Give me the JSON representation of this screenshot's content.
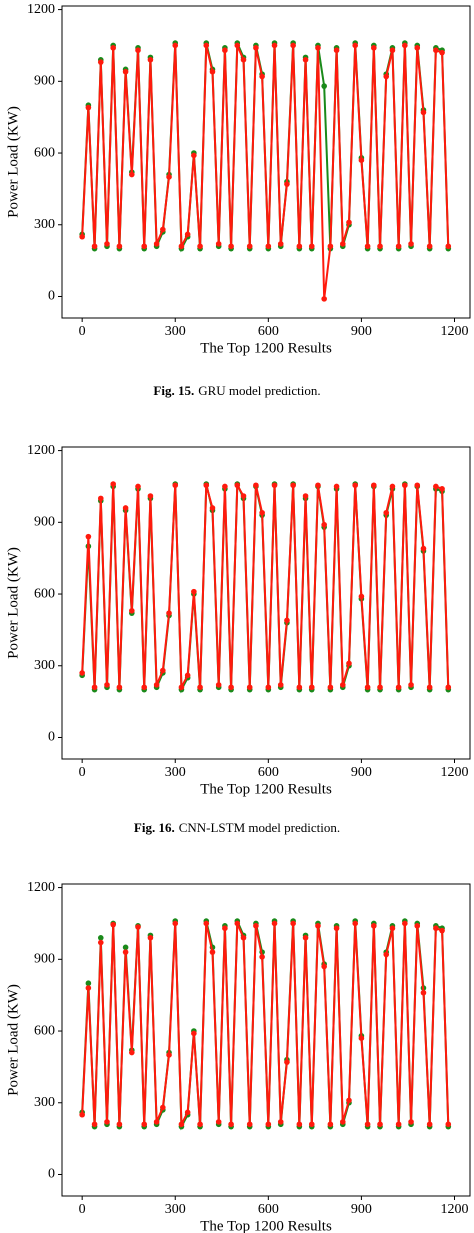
{
  "chart_data": [
    {
      "type": "line",
      "xlabel": "The Top 1200 Results",
      "ylabel": "Power Load (KW)",
      "caption_label": "Fig. 15.",
      "caption_text": "GRU model prediction.",
      "xlim": [
        -65,
        1250
      ],
      "ylim": [
        -90,
        1215
      ],
      "xticks": [
        0,
        300,
        600,
        900,
        1200
      ],
      "yticks": [
        0,
        300,
        600,
        900,
        1200
      ],
      "x": [
        0,
        20,
        40,
        60,
        80,
        100,
        120,
        140,
        160,
        180,
        200,
        220,
        240,
        260,
        280,
        300,
        320,
        340,
        360,
        380,
        400,
        420,
        440,
        460,
        480,
        500,
        520,
        540,
        560,
        580,
        600,
        620,
        640,
        660,
        680,
        700,
        720,
        740,
        760,
        780,
        800,
        820,
        840,
        860,
        880,
        900,
        920,
        940,
        960,
        980,
        1000,
        1020,
        1040,
        1060,
        1080,
        1100,
        1120,
        1140,
        1160,
        1180
      ],
      "series": [
        {
          "color": "#1a8a1a",
          "values": [
            260,
            800,
            200,
            990,
            210,
            1050,
            200,
            950,
            520,
            1040,
            200,
            1000,
            210,
            270,
            510,
            1060,
            200,
            250,
            600,
            200,
            1060,
            950,
            210,
            1040,
            200,
            1060,
            1000,
            200,
            1050,
            930,
            200,
            1060,
            210,
            480,
            1060,
            200,
            1000,
            200,
            1050,
            880,
            200,
            1040,
            210,
            300,
            1060,
            580,
            200,
            1050,
            200,
            930,
            1040,
            200,
            1060,
            210,
            1050,
            780,
            200,
            1040,
            1030,
            200
          ]
        },
        {
          "color": "#ff1a0d",
          "values": [
            250,
            790,
            210,
            980,
            220,
            1040,
            210,
            940,
            510,
            1030,
            210,
            990,
            220,
            280,
            500,
            1050,
            210,
            260,
            590,
            210,
            1050,
            940,
            220,
            1030,
            210,
            1050,
            990,
            210,
            1040,
            920,
            210,
            1050,
            220,
            470,
            1050,
            210,
            990,
            210,
            1040,
            -10,
            210,
            1030,
            220,
            310,
            1050,
            570,
            210,
            1040,
            210,
            920,
            1030,
            210,
            1050,
            220,
            1040,
            770,
            210,
            1030,
            1020,
            210
          ]
        }
      ]
    },
    {
      "type": "line",
      "xlabel": "The Top 1200 Results",
      "ylabel": "Power Load (KW)",
      "caption_label": "Fig. 16.",
      "caption_text": "CNN-LSTM model prediction.",
      "xlim": [
        -65,
        1250
      ],
      "ylim": [
        -90,
        1215
      ],
      "xticks": [
        0,
        300,
        600,
        900,
        1200
      ],
      "yticks": [
        0,
        300,
        600,
        900,
        1200
      ],
      "x": [
        0,
        20,
        40,
        60,
        80,
        100,
        120,
        140,
        160,
        180,
        200,
        220,
        240,
        260,
        280,
        300,
        320,
        340,
        360,
        380,
        400,
        420,
        440,
        460,
        480,
        500,
        520,
        540,
        560,
        580,
        600,
        620,
        640,
        660,
        680,
        700,
        720,
        740,
        760,
        780,
        800,
        820,
        840,
        860,
        880,
        900,
        920,
        940,
        960,
        980,
        1000,
        1020,
        1040,
        1060,
        1080,
        1100,
        1120,
        1140,
        1160,
        1180
      ],
      "series": [
        {
          "color": "#1a8a1a",
          "values": [
            260,
            800,
            200,
            990,
            210,
            1050,
            200,
            950,
            520,
            1040,
            200,
            1000,
            210,
            270,
            510,
            1060,
            200,
            250,
            600,
            200,
            1060,
            950,
            210,
            1040,
            200,
            1060,
            1000,
            200,
            1050,
            930,
            200,
            1060,
            210,
            480,
            1060,
            200,
            1000,
            200,
            1050,
            880,
            200,
            1040,
            210,
            300,
            1060,
            580,
            200,
            1050,
            200,
            930,
            1040,
            200,
            1060,
            210,
            1050,
            780,
            200,
            1040,
            1030,
            200
          ]
        },
        {
          "color": "#ff1a0d",
          "values": [
            270,
            840,
            210,
            1000,
            220,
            1060,
            210,
            960,
            530,
            1050,
            210,
            1010,
            220,
            280,
            520,
            1055,
            210,
            260,
            610,
            210,
            1055,
            960,
            220,
            1050,
            210,
            1055,
            1010,
            210,
            1055,
            940,
            210,
            1055,
            220,
            490,
            1055,
            210,
            1010,
            210,
            1055,
            890,
            210,
            1050,
            220,
            310,
            1055,
            590,
            210,
            1055,
            210,
            940,
            1050,
            210,
            1055,
            220,
            1055,
            790,
            210,
            1050,
            1040,
            210
          ]
        }
      ]
    },
    {
      "type": "line",
      "xlabel": "The Top 1200 Results",
      "ylabel": "Power Load (KW)",
      "xlim": [
        -65,
        1250
      ],
      "ylim": [
        -90,
        1215
      ],
      "xticks": [
        0,
        300,
        600,
        900,
        1200
      ],
      "yticks": [
        0,
        300,
        600,
        900,
        1200
      ],
      "x": [
        0,
        20,
        40,
        60,
        80,
        100,
        120,
        140,
        160,
        180,
        200,
        220,
        240,
        260,
        280,
        300,
        320,
        340,
        360,
        380,
        400,
        420,
        440,
        460,
        480,
        500,
        520,
        540,
        560,
        580,
        600,
        620,
        640,
        660,
        680,
        700,
        720,
        740,
        760,
        780,
        800,
        820,
        840,
        860,
        880,
        900,
        920,
        940,
        960,
        980,
        1000,
        1020,
        1040,
        1060,
        1080,
        1100,
        1120,
        1140,
        1160,
        1180
      ],
      "series": [
        {
          "color": "#1a8a1a",
          "values": [
            260,
            800,
            200,
            990,
            210,
            1050,
            200,
            950,
            520,
            1040,
            200,
            1000,
            210,
            270,
            510,
            1060,
            200,
            250,
            600,
            200,
            1060,
            950,
            210,
            1040,
            200,
            1060,
            1000,
            200,
            1050,
            930,
            200,
            1060,
            210,
            480,
            1060,
            200,
            1000,
            200,
            1050,
            880,
            200,
            1040,
            210,
            300,
            1060,
            580,
            200,
            1050,
            200,
            930,
            1040,
            200,
            1060,
            210,
            1050,
            780,
            200,
            1040,
            1030,
            200
          ]
        },
        {
          "color": "#ff1a0d",
          "values": [
            250,
            780,
            210,
            970,
            220,
            1045,
            210,
            930,
            510,
            1035,
            210,
            990,
            220,
            280,
            500,
            1050,
            210,
            260,
            590,
            210,
            1050,
            930,
            220,
            1030,
            210,
            1050,
            990,
            210,
            1040,
            910,
            210,
            1050,
            220,
            470,
            1050,
            210,
            990,
            210,
            1040,
            870,
            210,
            1030,
            220,
            310,
            1050,
            570,
            210,
            1040,
            210,
            920,
            1030,
            210,
            1050,
            220,
            1040,
            760,
            210,
            1030,
            1020,
            210
          ]
        }
      ]
    }
  ]
}
